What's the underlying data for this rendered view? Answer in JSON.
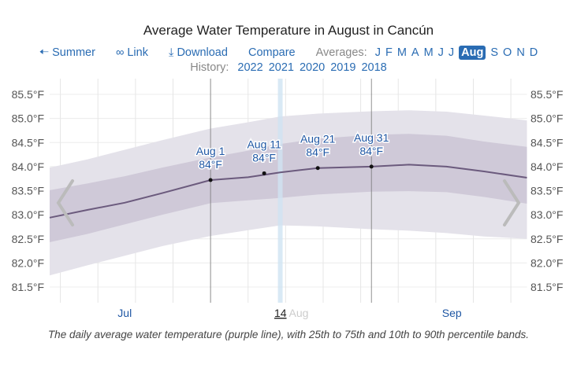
{
  "title": "Average Water Temperature in August in Cancún",
  "nav": {
    "back_label": "Summer",
    "link_label": "Link",
    "download_label": "Download",
    "compare_label": "Compare",
    "averages_label": "Averages:",
    "months": [
      "J",
      "F",
      "M",
      "A",
      "M",
      "J",
      "J",
      "Aug",
      "S",
      "O",
      "N",
      "D"
    ],
    "active_month_index": 7,
    "history_label": "History:",
    "years": [
      "2022",
      "2021",
      "2020",
      "2019",
      "2018"
    ]
  },
  "colors": {
    "link": "#2a6cb3",
    "line": "#6b5a7d",
    "band_25_75": "#cfc9d8",
    "band_10_90": "#e4e2ea",
    "highlight": "#cfe3f2"
  },
  "chart_data": {
    "type": "area",
    "xlim": [
      "Jul 2",
      "Sep 29"
    ],
    "ylim": [
      81.25,
      85.6
    ],
    "grid": true,
    "y_ticks": [
      "85.5°F",
      "85.0°F",
      "84.5°F",
      "84.0°F",
      "83.5°F",
      "83.0°F",
      "82.5°F",
      "82.0°F",
      "81.5°F"
    ],
    "y_tick_values": [
      85.5,
      85.0,
      84.5,
      84.0,
      83.5,
      83.0,
      82.5,
      82.0,
      81.5
    ],
    "x_ticks": [
      {
        "label": "Jul",
        "date": "Jul 16"
      },
      {
        "label": "Sep",
        "date": "Sep 15"
      }
    ],
    "highlight": {
      "date": "Aug 14",
      "label": "14",
      "faded_label": "Aug"
    },
    "x": [
      "Jul 2",
      "Jul 9",
      "Jul 16",
      "Jul 23",
      "Aug 1",
      "Aug 8",
      "Aug 14",
      "Aug 21",
      "Aug 31",
      "Sep 7",
      "Sep 14",
      "Sep 21",
      "Sep 29"
    ],
    "series": [
      {
        "role": "average",
        "values": [
          82.94,
          83.1,
          83.25,
          83.45,
          83.72,
          83.78,
          83.88,
          83.97,
          84.0,
          84.04,
          84.0,
          83.9,
          83.77
        ]
      },
      {
        "role": "p25",
        "values": [
          82.43,
          82.6,
          82.8,
          83.0,
          83.24,
          83.3,
          83.35,
          83.42,
          83.48,
          83.49,
          83.47,
          83.37,
          83.23
        ]
      },
      {
        "role": "p75",
        "values": [
          83.51,
          83.65,
          83.8,
          83.98,
          84.19,
          84.33,
          84.47,
          84.58,
          84.66,
          84.68,
          84.64,
          84.52,
          84.41
        ]
      },
      {
        "role": "p10",
        "values": [
          81.74,
          81.95,
          82.15,
          82.35,
          82.56,
          82.68,
          82.78,
          82.76,
          82.7,
          82.67,
          82.62,
          82.55,
          82.5
        ]
      },
      {
        "role": "p90",
        "values": [
          83.98,
          84.15,
          84.35,
          84.55,
          84.79,
          84.92,
          85.04,
          85.1,
          85.15,
          85.17,
          85.14,
          85.06,
          84.96
        ]
      }
    ],
    "annotations": [
      {
        "date": "Aug 1",
        "label": "Aug 1",
        "value_label": "84°F",
        "value": 83.72
      },
      {
        "date": "Aug 11",
        "label": "Aug 11",
        "value_label": "84°F",
        "value": 83.86
      },
      {
        "date": "Aug 21",
        "label": "Aug 21",
        "value_label": "84°F",
        "value": 83.97
      },
      {
        "date": "Aug 31",
        "label": "Aug 31",
        "value_label": "84°F",
        "value": 84.0
      }
    ]
  },
  "caption": "The daily average water temperature (purple line), with 25th to 75th and 10th to 90th percentile bands."
}
